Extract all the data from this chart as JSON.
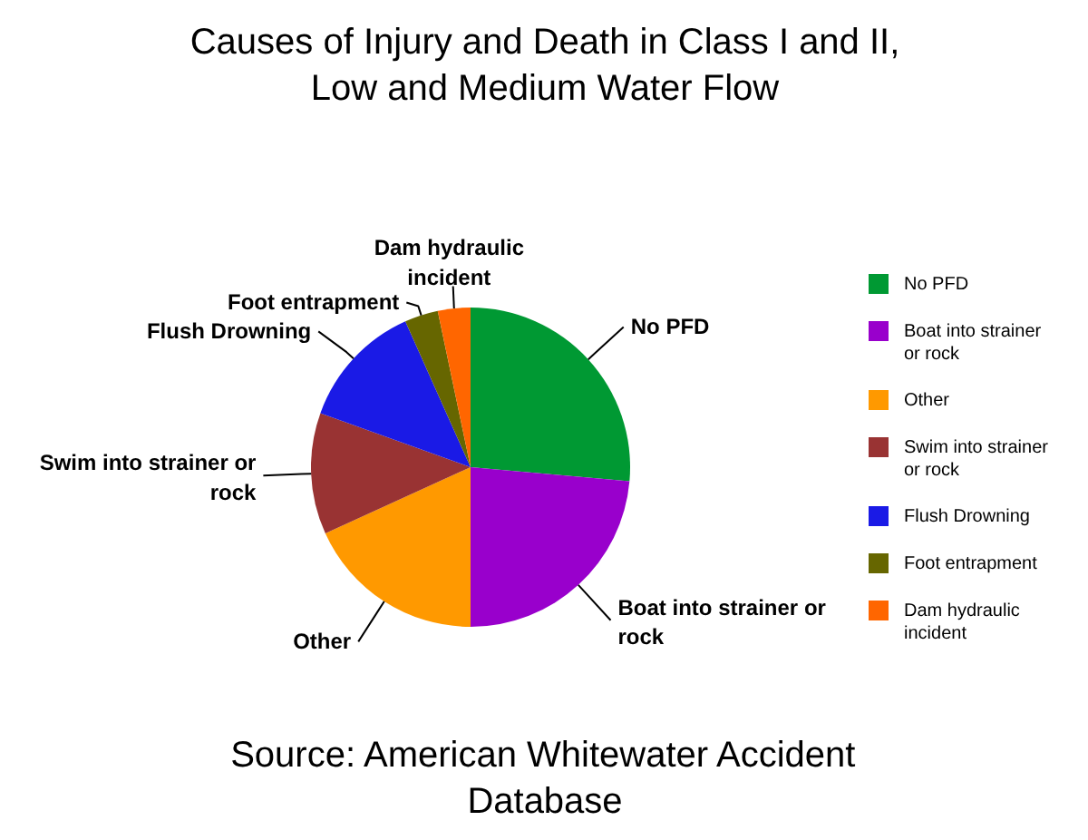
{
  "chart_data": {
    "type": "pie",
    "title": "Causes of Injury and Death in Class I and II, Low and Medium Water Flow",
    "categories": [
      "No PFD",
      "Boat into strainer or rock",
      "Other",
      "Swim into strainer or rock",
      "Flush Drowning",
      "Foot entrapment",
      "Dam hydraulic incident"
    ],
    "values": [
      26.4,
      23.6,
      18.2,
      12.3,
      12.8,
      3.4,
      3.3
    ],
    "colors": [
      "#009933",
      "#9900cc",
      "#ff9900",
      "#993333",
      "#1a1ae6",
      "#666600",
      "#ff6600"
    ],
    "legend": "right",
    "annotations": [
      "Source: American Whitewater Accident Database"
    ]
  }
}
